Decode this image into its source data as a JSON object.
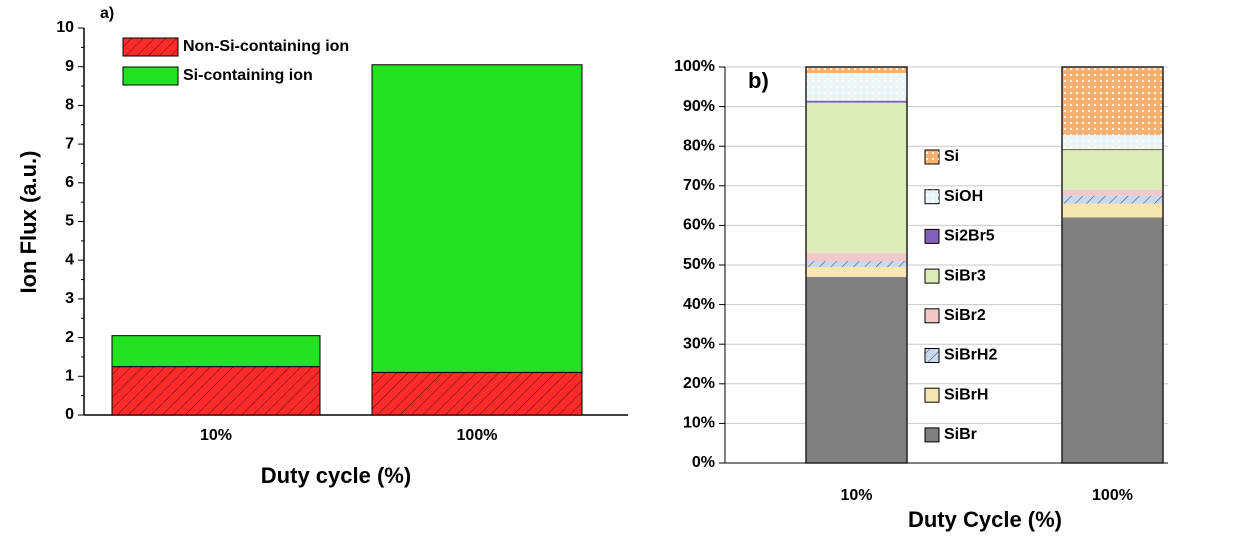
{
  "chart_data": [
    {
      "type": "stacked_bar",
      "annotation": "a)",
      "xlabel": "Duty cycle (%)",
      "ylabel": "Ion Flux (a.u.)",
      "categories": [
        "10%",
        "100%"
      ],
      "series": [
        {
          "name": "Non-Si-containing ion",
          "color": "#ff2a2a",
          "hatch": "/",
          "values": [
            1.25,
            1.1
          ]
        },
        {
          "name": "Si-containing ion",
          "color": "#22e022",
          "hatch": "\\",
          "values": [
            0.8,
            7.95
          ]
        }
      ],
      "ylim": [
        0,
        10
      ],
      "yticks": [
        0,
        1,
        2,
        3,
        4,
        5,
        6,
        7,
        8,
        9,
        10
      ],
      "grid": false
    },
    {
      "type": "stacked_bar",
      "annotation": "b)",
      "xlabel": "Duty Cycle (%)",
      "categories": [
        "10%",
        "100%"
      ],
      "series": [
        {
          "name": "SiBr",
          "color": "#808080",
          "hatch": "",
          "values": [
            47,
            62
          ]
        },
        {
          "name": "SiBrH",
          "color": "#f8e6b0",
          "hatch": "",
          "values": [
            2.5,
            3.5
          ]
        },
        {
          "name": "SiBrH2",
          "color": "#c8d8f0",
          "hatch": "/",
          "values": [
            1.5,
            2
          ]
        },
        {
          "name": "SiBr2",
          "color": "#f2c8c8",
          "hatch": "",
          "values": [
            2,
            1.5
          ]
        },
        {
          "name": "SiBr3",
          "color": "#dcebb8",
          "hatch": "\\",
          "values": [
            38,
            10
          ]
        },
        {
          "name": "Si2Br5",
          "color": "#8060b8",
          "hatch": "",
          "values": [
            0.5,
            0.3
          ]
        },
        {
          "name": "SiOH",
          "color": "#eaf5f8",
          "hatch": ".",
          "values": [
            7,
            3.5
          ]
        },
        {
          "name": "Si",
          "color": "#f5b070",
          "hatch": ".",
          "values": [
            1.5,
            17.2
          ]
        }
      ],
      "ylim": [
        0,
        100
      ],
      "yticks": [
        {
          "value": 0,
          "label": "0%"
        },
        {
          "value": 10,
          "label": "10%"
        },
        {
          "value": 20,
          "label": "20%"
        },
        {
          "value": 30,
          "label": "30%"
        },
        {
          "value": 40,
          "label": "40%"
        },
        {
          "value": 50,
          "label": "50%"
        },
        {
          "value": 60,
          "label": "60%"
        },
        {
          "value": 70,
          "label": "70%"
        },
        {
          "value": 80,
          "label": "80%"
        },
        {
          "value": 90,
          "label": "90%"
        },
        {
          "value": 100,
          "label": "100%"
        }
      ],
      "grid": true
    }
  ]
}
